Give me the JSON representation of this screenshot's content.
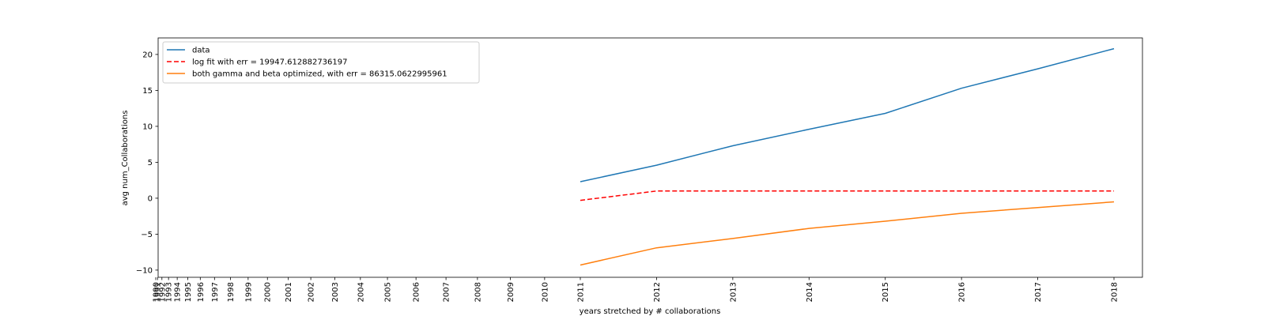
{
  "chart_data": {
    "type": "line",
    "title": "",
    "xlabel": "years stretched by # collaborations",
    "ylabel": "avg num_Collaborations",
    "xlim": [
      1989.5,
      2019.0
    ],
    "ylim": [
      -11.0,
      22.3
    ],
    "grid": false,
    "legend_position": "upper left",
    "x_ticks": [
      {
        "year": 1990,
        "label": "1990"
      },
      {
        "year": 1991,
        "label": "1991"
      },
      {
        "year": 1992,
        "label": "1992"
      },
      {
        "year": 1993,
        "label": "1993"
      },
      {
        "year": 1994,
        "label": "1994"
      },
      {
        "year": 1995,
        "label": "1995"
      },
      {
        "year": 1996,
        "label": "1996"
      },
      {
        "year": 1997,
        "label": "1997"
      },
      {
        "year": 1998,
        "label": "1998"
      },
      {
        "year": 1999,
        "label": "1999"
      },
      {
        "year": 2000,
        "label": "2000"
      },
      {
        "year": 2001,
        "label": "2001"
      },
      {
        "year": 2002,
        "label": "2002"
      },
      {
        "year": 2003,
        "label": "2003"
      },
      {
        "year": 2004,
        "label": "2004"
      },
      {
        "year": 2005,
        "label": "2005"
      },
      {
        "year": 2006,
        "label": "2006"
      },
      {
        "year": 2007,
        "label": "2007"
      },
      {
        "year": 2008,
        "label": "2008"
      },
      {
        "year": 2009,
        "label": "2009"
      },
      {
        "year": 2010,
        "label": "2010"
      },
      {
        "year": 2011,
        "label": "2011"
      },
      {
        "year": 2012,
        "label": "2012"
      },
      {
        "year": 2013,
        "label": "2013"
      },
      {
        "year": 2014,
        "label": "2014"
      },
      {
        "year": 2015,
        "label": "2015"
      },
      {
        "year": 2016,
        "label": "2016"
      },
      {
        "year": 2017,
        "label": "2017"
      },
      {
        "year": 2018,
        "label": "2018"
      }
    ],
    "y_ticks": [
      -10,
      -5,
      0,
      5,
      10,
      15,
      20
    ],
    "x": [
      2011,
      2012,
      2013,
      2014,
      2015,
      2016,
      2017,
      2018
    ],
    "series": [
      {
        "name": "data",
        "color": "#1f77b4",
        "dash": "solid",
        "values": [
          2.3,
          4.6,
          7.3,
          9.6,
          11.8,
          15.3,
          18.0,
          20.8
        ]
      },
      {
        "name": "log fit with err = 19947.612882736197",
        "color": "#ff0000",
        "dash": "dashed",
        "values": [
          -0.3,
          1.0,
          1.0,
          1.0,
          1.0,
          1.0,
          1.0,
          1.0
        ]
      },
      {
        "name": "both gamma and beta optimized, with err = 86315.0622995961",
        "color": "#ff7f0e",
        "dash": "solid",
        "values": [
          -9.3,
          -6.9,
          -5.6,
          -4.2,
          -3.2,
          -2.1,
          -1.3,
          -0.5
        ]
      }
    ]
  }
}
